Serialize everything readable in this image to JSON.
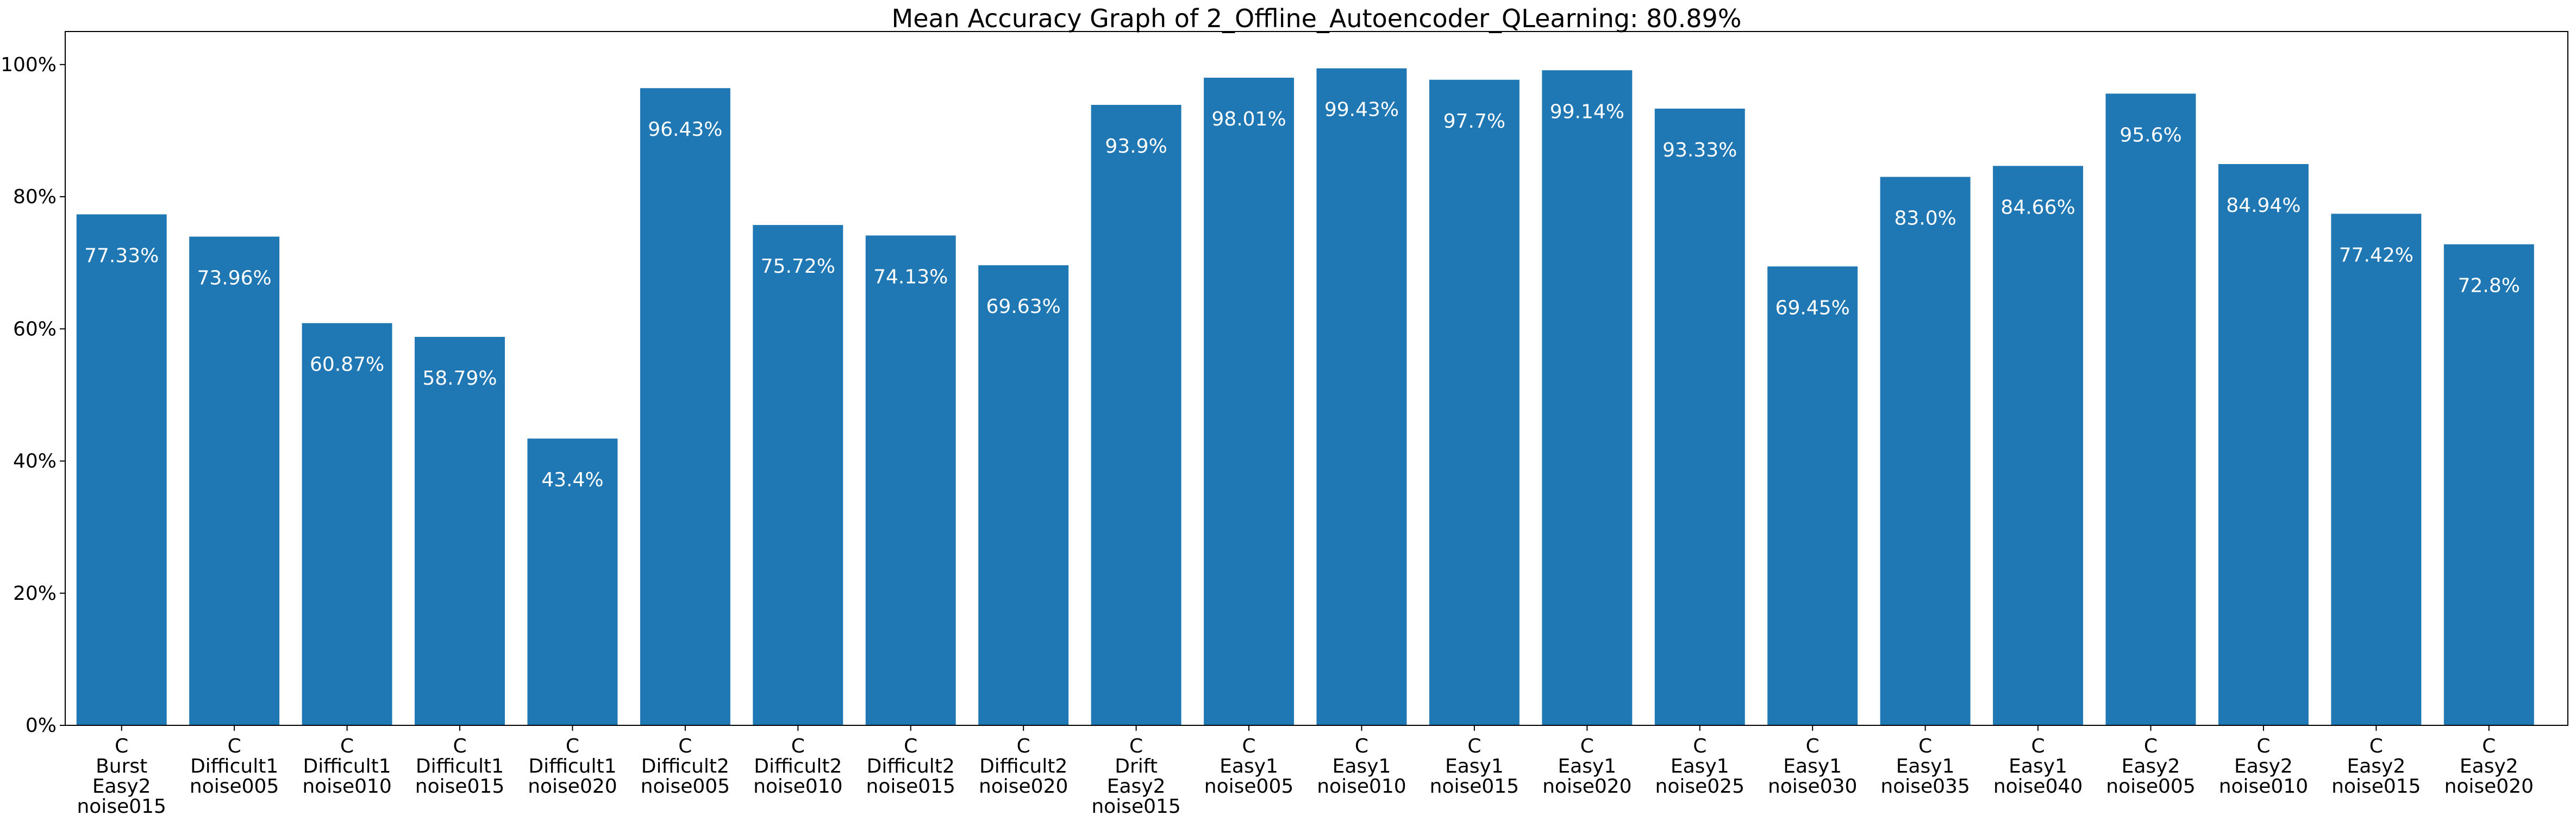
{
  "chart_data": {
    "type": "bar",
    "title": "Mean Accuracy Graph of 2_Offline_Autoencoder_QLearning: 80.89%",
    "xlabel": "",
    "ylabel": "",
    "ylim": [
      0,
      105
    ],
    "yticks": [
      0,
      20,
      40,
      60,
      80,
      100
    ],
    "ytick_labels": [
      "0%",
      "20%",
      "40%",
      "60%",
      "80%",
      "100%"
    ],
    "grid": false,
    "bar_color": "#1f77b4",
    "categories": [
      [
        "C",
        "Burst",
        "Easy2",
        "noise015"
      ],
      [
        "C",
        "Difficult1",
        "noise005"
      ],
      [
        "C",
        "Difficult1",
        "noise010"
      ],
      [
        "C",
        "Difficult1",
        "noise015"
      ],
      [
        "C",
        "Difficult1",
        "noise020"
      ],
      [
        "C",
        "Difficult2",
        "noise005"
      ],
      [
        "C",
        "Difficult2",
        "noise010"
      ],
      [
        "C",
        "Difficult2",
        "noise015"
      ],
      [
        "C",
        "Difficult2",
        "noise020"
      ],
      [
        "C",
        "Drift",
        "Easy2",
        "noise015"
      ],
      [
        "C",
        "Easy1",
        "noise005"
      ],
      [
        "C",
        "Easy1",
        "noise010"
      ],
      [
        "C",
        "Easy1",
        "noise015"
      ],
      [
        "C",
        "Easy1",
        "noise020"
      ],
      [
        "C",
        "Easy1",
        "noise025"
      ],
      [
        "C",
        "Easy1",
        "noise030"
      ],
      [
        "C",
        "Easy1",
        "noise035"
      ],
      [
        "C",
        "Easy1",
        "noise040"
      ],
      [
        "C",
        "Easy2",
        "noise005"
      ],
      [
        "C",
        "Easy2",
        "noise010"
      ],
      [
        "C",
        "Easy2",
        "noise015"
      ],
      [
        "C",
        "Easy2",
        "noise020"
      ]
    ],
    "values": [
      77.33,
      73.96,
      60.87,
      58.79,
      43.4,
      96.43,
      75.72,
      74.13,
      69.63,
      93.9,
      98.01,
      99.43,
      97.7,
      99.14,
      93.33,
      69.45,
      83.0,
      84.66,
      95.6,
      84.94,
      77.42,
      72.8
    ],
    "value_labels": [
      "77.33%",
      "73.96%",
      "60.87%",
      "58.79%",
      "43.4%",
      "96.43%",
      "75.72%",
      "74.13%",
      "69.63%",
      "93.9%",
      "98.01%",
      "99.43%",
      "97.7%",
      "99.14%",
      "93.33%",
      "69.45%",
      "83.0%",
      "84.66%",
      "95.6%",
      "84.94%",
      "77.42%",
      "72.8%"
    ]
  }
}
